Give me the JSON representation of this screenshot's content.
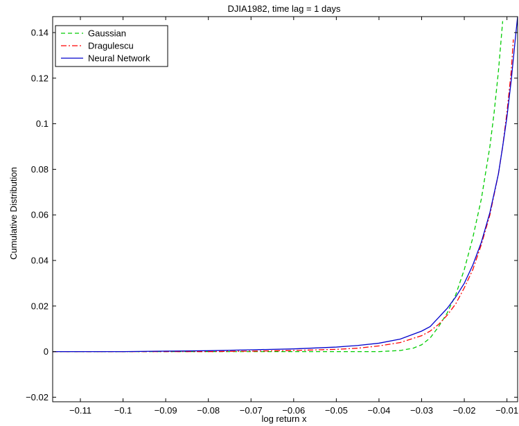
{
  "chart_data": {
    "type": "line",
    "title": "DJIA1982, time lag = 1 days",
    "xlabel": "log return x",
    "ylabel": "Cumulative Distribution",
    "xlim": [
      -0.1165,
      -0.0075
    ],
    "ylim": [
      -0.022,
      0.147
    ],
    "x_ticks": [
      -0.11,
      -0.1,
      -0.09,
      -0.08,
      -0.07,
      -0.06,
      -0.05,
      -0.04,
      -0.03,
      -0.02,
      -0.01
    ],
    "x_tick_labels": [
      "−0.11",
      "−0.1",
      "−0.09",
      "−0.08",
      "−0.07",
      "−0.06",
      "−0.05",
      "−0.04",
      "−0.03",
      "−0.02",
      "−0.01"
    ],
    "y_ticks": [
      -0.02,
      0,
      0.02,
      0.04,
      0.06,
      0.08,
      0.1,
      0.12,
      0.14
    ],
    "y_tick_labels": [
      "−0.02",
      "0",
      "0.02",
      "0.04",
      "0.06",
      "0.08",
      "0.1",
      "0.12",
      "0.14"
    ],
    "grid": false,
    "legend_position": "top-left",
    "series": [
      {
        "name": "Gaussian",
        "color": "#00cc00",
        "style": "dashed",
        "x": [
          -0.1165,
          -0.1,
          -0.09,
          -0.08,
          -0.07,
          -0.06,
          -0.05,
          -0.045,
          -0.04,
          -0.035,
          -0.032,
          -0.03,
          -0.028,
          -0.026,
          -0.024,
          -0.022,
          -0.02,
          -0.018,
          -0.016,
          -0.014,
          -0.013,
          -0.012,
          -0.011
        ],
        "y": [
          0,
          0,
          0,
          0,
          0,
          0,
          0,
          0,
          0,
          0.0005,
          0.0015,
          0.003,
          0.006,
          0.011,
          0.017,
          0.025,
          0.036,
          0.05,
          0.067,
          0.09,
          0.105,
          0.123,
          0.145
        ]
      },
      {
        "name": "Dragulescu",
        "color": "#ff0000",
        "style": "dashdot",
        "x": [
          -0.1165,
          -0.1,
          -0.09,
          -0.08,
          -0.07,
          -0.06,
          -0.05,
          -0.045,
          -0.04,
          -0.035,
          -0.03,
          -0.028,
          -0.026,
          -0.024,
          -0.022,
          -0.02,
          -0.018,
          -0.016,
          -0.014,
          -0.012,
          -0.011,
          -0.01,
          -0.009,
          -0.0085
        ],
        "y": [
          0,
          0,
          0,
          0,
          0.0002,
          0.0005,
          0.001,
          0.0015,
          0.0025,
          0.004,
          0.007,
          0.009,
          0.012,
          0.016,
          0.021,
          0.028,
          0.036,
          0.047,
          0.06,
          0.078,
          0.09,
          0.105,
          0.123,
          0.137
        ]
      },
      {
        "name": "Neural Network",
        "color": "#0000cc",
        "style": "solid",
        "x": [
          -0.1165,
          -0.1,
          -0.09,
          -0.08,
          -0.07,
          -0.06,
          -0.05,
          -0.045,
          -0.04,
          -0.035,
          -0.03,
          -0.028,
          -0.026,
          -0.024,
          -0.022,
          -0.02,
          -0.018,
          -0.016,
          -0.014,
          -0.012,
          -0.011,
          -0.01,
          -0.009,
          -0.008,
          -0.0075
        ],
        "y": [
          0,
          0,
          0.0002,
          0.0004,
          0.0008,
          0.0012,
          0.002,
          0.0027,
          0.0037,
          0.0055,
          0.009,
          0.011,
          0.015,
          0.019,
          0.024,
          0.03,
          0.038,
          0.048,
          0.061,
          0.078,
          0.09,
          0.103,
          0.119,
          0.138,
          0.147
        ]
      }
    ]
  }
}
